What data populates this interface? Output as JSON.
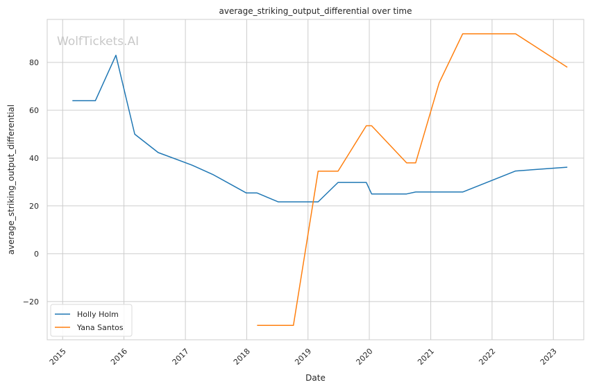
{
  "watermark": "WolfTickets.AI",
  "chart_data": {
    "type": "line",
    "title": "average_striking_output_differential over time",
    "xlabel": "Date",
    "ylabel": "average_striking_output_differential",
    "x_ticks": [
      "2015",
      "2016",
      "2017",
      "2018",
      "2019",
      "2020",
      "2021",
      "2022",
      "2023"
    ],
    "y_ticks": [
      -20,
      0,
      20,
      40,
      60,
      80
    ],
    "xlim": [
      "2014-10-01",
      "2023-07-01"
    ],
    "ylim": [
      -36,
      98
    ],
    "grid": true,
    "legend_position": "lower-left",
    "series": [
      {
        "name": "Holly Holm",
        "color": "#1f77b4",
        "points": [
          {
            "x": "2015-02-28",
            "y": 64
          },
          {
            "x": "2015-07-15",
            "y": 64
          },
          {
            "x": "2015-11-14",
            "y": 83
          },
          {
            "x": "2016-03-05",
            "y": 50
          },
          {
            "x": "2016-07-23",
            "y": 42.3
          },
          {
            "x": "2017-02-11",
            "y": 37
          },
          {
            "x": "2017-06-17",
            "y": 33
          },
          {
            "x": "2017-12-30",
            "y": 25.4
          },
          {
            "x": "2018-03-04",
            "y": 25.4
          },
          {
            "x": "2018-07-07",
            "y": 21.7
          },
          {
            "x": "2019-03-02",
            "y": 21.7
          },
          {
            "x": "2019-06-29",
            "y": 29.8
          },
          {
            "x": "2019-12-14",
            "y": 29.8
          },
          {
            "x": "2020-01-15",
            "y": 25
          },
          {
            "x": "2020-08-10",
            "y": 25
          },
          {
            "x": "2020-10-03",
            "y": 25.8
          },
          {
            "x": "2021-07-10",
            "y": 25.8
          },
          {
            "x": "2022-05-21",
            "y": 34.6
          },
          {
            "x": "2023-03-25",
            "y": 36.2
          }
        ]
      },
      {
        "name": "Yana Santos",
        "color": "#ff7f0e",
        "points": [
          {
            "x": "2018-03-04",
            "y": -30
          },
          {
            "x": "2018-10-06",
            "y": -30
          },
          {
            "x": "2019-03-02",
            "y": 34.5
          },
          {
            "x": "2019-06-29",
            "y": 34.5
          },
          {
            "x": "2019-12-14",
            "y": 53.5
          },
          {
            "x": "2020-01-15",
            "y": 53.5
          },
          {
            "x": "2020-08-10",
            "y": 38
          },
          {
            "x": "2020-10-03",
            "y": 38
          },
          {
            "x": "2021-02-20",
            "y": 71.5
          },
          {
            "x": "2021-07-10",
            "y": 92
          },
          {
            "x": "2022-05-21",
            "y": 92
          },
          {
            "x": "2023-03-25",
            "y": 78
          }
        ]
      }
    ]
  }
}
